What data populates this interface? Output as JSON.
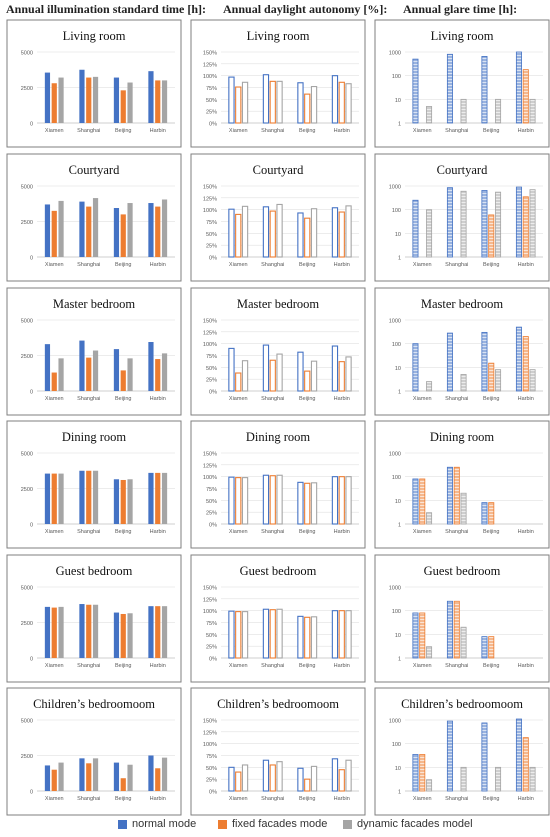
{
  "headers": {
    "col1": "Annual illumination standard time [h]:",
    "col2": "Annual daylight autonomy [%]:",
    "col3": "Annual glare time [h]:"
  },
  "legend": {
    "normal": "normal mode",
    "fixed": "fixed facades mode",
    "dynamic": "dynamic facades model"
  },
  "colors": {
    "normal": "#4472C4",
    "fixed": "#ED7D31",
    "dynamic": "#A5A5A5",
    "panel_border": "#7f7f7f",
    "axis": "#bfbfbf",
    "grid": "#d9d9d9"
  },
  "chart_data": [
    {
      "type": "bar",
      "title": "Living room",
      "categories": [
        "Xiamen",
        "Shanghai",
        "Beijing",
        "Harbin"
      ],
      "yticks": [
        "0",
        "2500",
        "5000"
      ],
      "ylim": [
        0,
        5000
      ],
      "series": [
        {
          "name": "normal mode",
          "values": [
            3550,
            3750,
            3200,
            3650
          ]
        },
        {
          "name": "fixed facades mode",
          "values": [
            2800,
            3200,
            2300,
            3000
          ]
        },
        {
          "name": "dynamic facades model",
          "values": [
            3200,
            3250,
            2850,
            3000
          ]
        }
      ]
    },
    {
      "type": "bar",
      "title": "Living room",
      "categories": [
        "Xiamen",
        "Shanghai",
        "Beijing",
        "Harbin"
      ],
      "yticks": [
        "0%",
        "25%",
        "50%",
        "75%",
        "100%",
        "125%",
        "150%"
      ],
      "ylim": [
        0,
        150
      ],
      "series": [
        {
          "name": "normal mode",
          "values": [
            97,
            102,
            85,
            100
          ]
        },
        {
          "name": "fixed facades mode",
          "values": [
            76,
            88,
            61,
            86
          ]
        },
        {
          "name": "dynamic facades model",
          "values": [
            86,
            88,
            77,
            83
          ]
        }
      ]
    },
    {
      "type": "bar",
      "title": "Living room",
      "log": true,
      "categories": [
        "Xiamen",
        "Shanghai",
        "Beijing",
        "Harbin"
      ],
      "yticks": [
        "1",
        "10",
        "100",
        "1000"
      ],
      "ylim": [
        1,
        1000
      ],
      "series": [
        {
          "name": "normal mode",
          "values": [
            500,
            800,
            650,
            1000
          ]
        },
        {
          "name": "fixed facades mode",
          "values": [
            0,
            0,
            0,
            180
          ]
        },
        {
          "name": "dynamic facades model",
          "values": [
            5,
            10,
            10,
            10
          ]
        }
      ]
    },
    {
      "type": "bar",
      "title": "Courtyard",
      "categories": [
        "Xiamen",
        "Shanghai",
        "Beijing",
        "Harbin"
      ],
      "yticks": [
        "0",
        "2500",
        "5000"
      ],
      "ylim": [
        0,
        5000
      ],
      "series": [
        {
          "name": "normal mode",
          "values": [
            3700,
            3900,
            3450,
            3800
          ]
        },
        {
          "name": "fixed facades mode",
          "values": [
            3250,
            3550,
            3000,
            3550
          ]
        },
        {
          "name": "dynamic facades model",
          "values": [
            3950,
            4150,
            3800,
            4050
          ]
        }
      ]
    },
    {
      "type": "bar",
      "title": "Courtyard",
      "categories": [
        "Xiamen",
        "Shanghai",
        "Beijing",
        "Harbin"
      ],
      "yticks": [
        "0%",
        "25%",
        "50%",
        "75%",
        "100%",
        "125%",
        "150%"
      ],
      "ylim": [
        0,
        150
      ],
      "series": [
        {
          "name": "normal mode",
          "values": [
            101,
            106,
            93,
            104
          ]
        },
        {
          "name": "fixed facades mode",
          "values": [
            90,
            97,
            82,
            95
          ]
        },
        {
          "name": "dynamic facades model",
          "values": [
            107,
            111,
            102,
            108
          ]
        }
      ]
    },
    {
      "type": "bar",
      "title": "Courtyard",
      "log": true,
      "categories": [
        "Xiamen",
        "Shanghai",
        "Beijing",
        "Harbin"
      ],
      "yticks": [
        "1",
        "10",
        "100",
        "1000"
      ],
      "ylim": [
        1,
        1000
      ],
      "series": [
        {
          "name": "normal mode",
          "values": [
            250,
            850,
            650,
            900
          ]
        },
        {
          "name": "fixed facades mode",
          "values": [
            0,
            0,
            60,
            350
          ]
        },
        {
          "name": "dynamic facades model",
          "values": [
            100,
            600,
            550,
            700
          ]
        }
      ]
    },
    {
      "type": "bar",
      "title": "Master bedroom",
      "categories": [
        "Xiamen",
        "Shanghai",
        "Beijing",
        "Harbin"
      ],
      "yticks": [
        "0",
        "2500",
        "5000"
      ],
      "ylim": [
        0,
        5000
      ],
      "series": [
        {
          "name": "normal mode",
          "values": [
            3300,
            3550,
            2950,
            3450
          ]
        },
        {
          "name": "fixed facades mode",
          "values": [
            1300,
            2350,
            1450,
            2250
          ]
        },
        {
          "name": "dynamic facades model",
          "values": [
            2300,
            2850,
            2300,
            2650
          ]
        }
      ]
    },
    {
      "type": "bar",
      "title": "Master bedroom",
      "categories": [
        "Xiamen",
        "Shanghai",
        "Beijing",
        "Harbin"
      ],
      "yticks": [
        "0%",
        "25%",
        "50%",
        "75%",
        "100%",
        "125%",
        "150%"
      ],
      "ylim": [
        0,
        150
      ],
      "series": [
        {
          "name": "normal mode",
          "values": [
            90,
            97,
            82,
            95
          ]
        },
        {
          "name": "fixed facades mode",
          "values": [
            38,
            65,
            42,
            62
          ]
        },
        {
          "name": "dynamic facades model",
          "values": [
            64,
            78,
            63,
            72
          ]
        }
      ]
    },
    {
      "type": "bar",
      "title": "Master bedroom",
      "log": true,
      "categories": [
        "Xiamen",
        "Shanghai",
        "Beijing",
        "Harbin"
      ],
      "yticks": [
        "1",
        "10",
        "100",
        "1000"
      ],
      "ylim": [
        1,
        1000
      ],
      "series": [
        {
          "name": "normal mode",
          "values": [
            100,
            280,
            300,
            500
          ]
        },
        {
          "name": "fixed facades mode",
          "values": [
            0,
            0,
            15,
            200
          ]
        },
        {
          "name": "dynamic facades model",
          "values": [
            2.5,
            5,
            8,
            8
          ]
        }
      ]
    },
    {
      "type": "bar",
      "title": "Dining room",
      "categories": [
        "Xiamen",
        "Shanghai",
        "Beijing",
        "Harbin"
      ],
      "yticks": [
        "0",
        "2500",
        "5000"
      ],
      "ylim": [
        0,
        5000
      ],
      "series": [
        {
          "name": "normal mode",
          "values": [
            3550,
            3750,
            3150,
            3600
          ]
        },
        {
          "name": "fixed facades mode",
          "values": [
            3550,
            3750,
            3100,
            3600
          ]
        },
        {
          "name": "dynamic facades model",
          "values": [
            3550,
            3750,
            3150,
            3600
          ]
        }
      ]
    },
    {
      "type": "bar",
      "title": "Dining room",
      "categories": [
        "Xiamen",
        "Shanghai",
        "Beijing",
        "Harbin"
      ],
      "yticks": [
        "0%",
        "25%",
        "50%",
        "75%",
        "100%",
        "125%",
        "150%"
      ],
      "ylim": [
        0,
        150
      ],
      "series": [
        {
          "name": "normal mode",
          "values": [
            99,
            103,
            88,
            100
          ]
        },
        {
          "name": "fixed facades mode",
          "values": [
            98,
            102,
            86,
            100
          ]
        },
        {
          "name": "dynamic facades model",
          "values": [
            98,
            103,
            87,
            100
          ]
        }
      ]
    },
    {
      "type": "bar",
      "title": "Dining room",
      "log": true,
      "categories": [
        "Xiamen",
        "Shanghai",
        "Beijing",
        "Harbin"
      ],
      "yticks": [
        "1",
        "10",
        "100",
        "1000"
      ],
      "ylim": [
        1,
        1000
      ],
      "series": [
        {
          "name": "normal mode",
          "values": [
            80,
            250,
            8,
            0
          ]
        },
        {
          "name": "fixed facades mode",
          "values": [
            80,
            250,
            8,
            0
          ]
        },
        {
          "name": "dynamic facades model",
          "values": [
            3,
            20,
            0,
            0
          ]
        }
      ]
    },
    {
      "type": "bar",
      "title": "Guest bedroom",
      "categories": [
        "Xiamen",
        "Shanghai",
        "Beijing",
        "Harbin"
      ],
      "yticks": [
        "0",
        "2500",
        "5000"
      ],
      "ylim": [
        0,
        5000
      ],
      "series": [
        {
          "name": "normal mode",
          "values": [
            3600,
            3800,
            3200,
            3650
          ]
        },
        {
          "name": "fixed facades mode",
          "values": [
            3550,
            3750,
            3100,
            3650
          ]
        },
        {
          "name": "dynamic facades model",
          "values": [
            3600,
            3750,
            3150,
            3650
          ]
        }
      ]
    },
    {
      "type": "bar",
      "title": "Guest bedroom",
      "categories": [
        "Xiamen",
        "Shanghai",
        "Beijing",
        "Harbin"
      ],
      "yticks": [
        "0%",
        "25%",
        "50%",
        "75%",
        "100%",
        "125%",
        "150%"
      ],
      "ylim": [
        0,
        150
      ],
      "series": [
        {
          "name": "normal mode",
          "values": [
            99,
            103,
            88,
            100
          ]
        },
        {
          "name": "fixed facades mode",
          "values": [
            98,
            102,
            86,
            100
          ]
        },
        {
          "name": "dynamic facades model",
          "values": [
            98,
            103,
            87,
            100
          ]
        }
      ]
    },
    {
      "type": "bar",
      "title": "Guest bedroom",
      "log": true,
      "categories": [
        "Xiamen",
        "Shanghai",
        "Beijing",
        "Harbin"
      ],
      "yticks": [
        "1",
        "10",
        "100",
        "1000"
      ],
      "ylim": [
        1,
        1000
      ],
      "series": [
        {
          "name": "normal mode",
          "values": [
            80,
            250,
            8,
            0
          ]
        },
        {
          "name": "fixed facades mode",
          "values": [
            80,
            250,
            8,
            0
          ]
        },
        {
          "name": "dynamic facades model",
          "values": [
            3,
            20,
            0,
            0
          ]
        }
      ]
    },
    {
      "type": "bar",
      "title": "Children’s bedroomoom",
      "categories": [
        "Xiamen",
        "Shanghai",
        "Beijing",
        "Harbin"
      ],
      "yticks": [
        "0",
        "2500",
        "5000"
      ],
      "ylim": [
        0,
        5000
      ],
      "series": [
        {
          "name": "normal mode",
          "values": [
            1800,
            2300,
            2000,
            2500
          ]
        },
        {
          "name": "fixed facades mode",
          "values": [
            1500,
            1950,
            900,
            1600
          ]
        },
        {
          "name": "dynamic facades model",
          "values": [
            2000,
            2300,
            1850,
            2350
          ]
        }
      ]
    },
    {
      "type": "bar",
      "title": "Children’s bedroomoom",
      "categories": [
        "Xiamen",
        "Shanghai",
        "Beijing",
        "Harbin"
      ],
      "yticks": [
        "0%",
        "25%",
        "50%",
        "75%",
        "100%",
        "125%",
        "150%"
      ],
      "ylim": [
        0,
        150
      ],
      "series": [
        {
          "name": "normal mode",
          "values": [
            50,
            65,
            48,
            68
          ]
        },
        {
          "name": "fixed facades mode",
          "values": [
            40,
            55,
            25,
            45
          ]
        },
        {
          "name": "dynamic facades model",
          "values": [
            55,
            62,
            52,
            65
          ]
        }
      ]
    },
    {
      "type": "bar",
      "title": "Children’s bedroomoom",
      "log": true,
      "categories": [
        "Xiamen",
        "Shanghai",
        "Beijing",
        "Harbin"
      ],
      "yticks": [
        "1",
        "10",
        "100",
        "1000"
      ],
      "ylim": [
        1,
        1000
      ],
      "series": [
        {
          "name": "normal mode",
          "values": [
            35,
            900,
            750,
            1100
          ]
        },
        {
          "name": "fixed facades mode",
          "values": [
            35,
            0,
            0,
            180
          ]
        },
        {
          "name": "dynamic facades model",
          "values": [
            3,
            10,
            10,
            10
          ]
        }
      ]
    }
  ]
}
